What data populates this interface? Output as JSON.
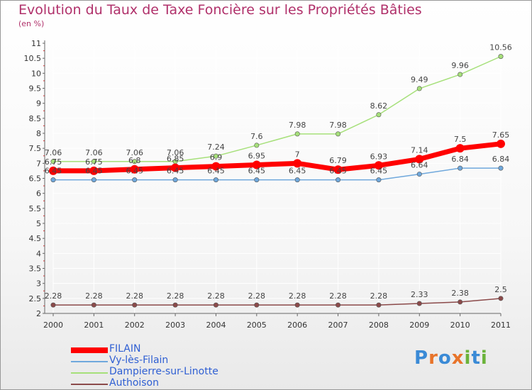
{
  "title": "Evolution du Taux de Taxe Foncière sur les Propriétés Bâties",
  "subtitle": "(en %)",
  "brand": {
    "text": "Proxiti",
    "colors": [
      "#3a8ad6",
      "#e8742a",
      "#3a8ad6",
      "#e8742a",
      "#6bb33a",
      "#3a8ad6",
      "#6bb33a"
    ]
  },
  "chart_data": {
    "type": "line",
    "title": "Evolution du Taux de Taxe Foncière sur les Propriétés Bâties",
    "subtitle": "(en %)",
    "xlabel": "",
    "ylabel": "",
    "ylim": [
      2,
      11
    ],
    "yticks": [
      "2",
      "2.5",
      "3",
      "3.5",
      "4",
      "4.5",
      "5",
      "5.5",
      "6",
      "6.5",
      "7",
      "7.5",
      "8",
      "8.5",
      "9",
      "9.5",
      "10",
      "10.5",
      "11"
    ],
    "x": [
      "2000",
      "2001",
      "2002",
      "2003",
      "2004",
      "2005",
      "2006",
      "2007",
      "2008",
      "2009",
      "2010",
      "2011"
    ],
    "legend_position": "bottom-left",
    "grid": true,
    "series": [
      {
        "name": "FILAIN",
        "color": "#ff0000",
        "style": "thick",
        "values": [
          6.75,
          6.75,
          6.8,
          6.85,
          6.9,
          6.95,
          7,
          6.79,
          6.93,
          7.14,
          7.5,
          7.65
        ],
        "labels": [
          "6.75",
          "6.75",
          "6.8",
          "6.85",
          "6.9",
          "6.95",
          "7",
          "6.79",
          "6.93",
          "7.14",
          "7.5",
          "7.65"
        ]
      },
      {
        "name": "Vy-lès-Filain",
        "color": "#6fa8dc",
        "values": [
          6.45,
          6.45,
          6.45,
          6.45,
          6.45,
          6.45,
          6.45,
          6.45,
          6.45,
          6.64,
          6.84,
          6.84
        ],
        "labels": [
          "6.45",
          "6.45",
          "6.45",
          "6.45",
          "6.45",
          "6.45",
          "6.45",
          "6.45",
          "6.45",
          "6.64",
          "6.84",
          "6.84"
        ]
      },
      {
        "name": "Dampierre-sur-Linotte",
        "color": "#a6e07a",
        "values": [
          7.06,
          7.06,
          7.06,
          7.06,
          7.24,
          7.6,
          7.98,
          7.98,
          8.62,
          9.49,
          9.96,
          10.56
        ],
        "labels": [
          "7.06",
          "7.06",
          "7.06",
          "7.06",
          "7.24",
          "7.6",
          "7.98",
          "7.98",
          "8.62",
          "9.49",
          "9.96",
          "10.56"
        ]
      },
      {
        "name": "Authoison",
        "color": "#8b4a4a",
        "values": [
          2.28,
          2.28,
          2.28,
          2.28,
          2.28,
          2.28,
          2.28,
          2.28,
          2.28,
          2.33,
          2.38,
          2.5
        ],
        "labels": [
          "2.28",
          "2.28",
          "2.28",
          "2.28",
          "2.28",
          "2.28",
          "2.28",
          "2.28",
          "2.28",
          "2.33",
          "2.38",
          "2.5"
        ]
      }
    ]
  }
}
